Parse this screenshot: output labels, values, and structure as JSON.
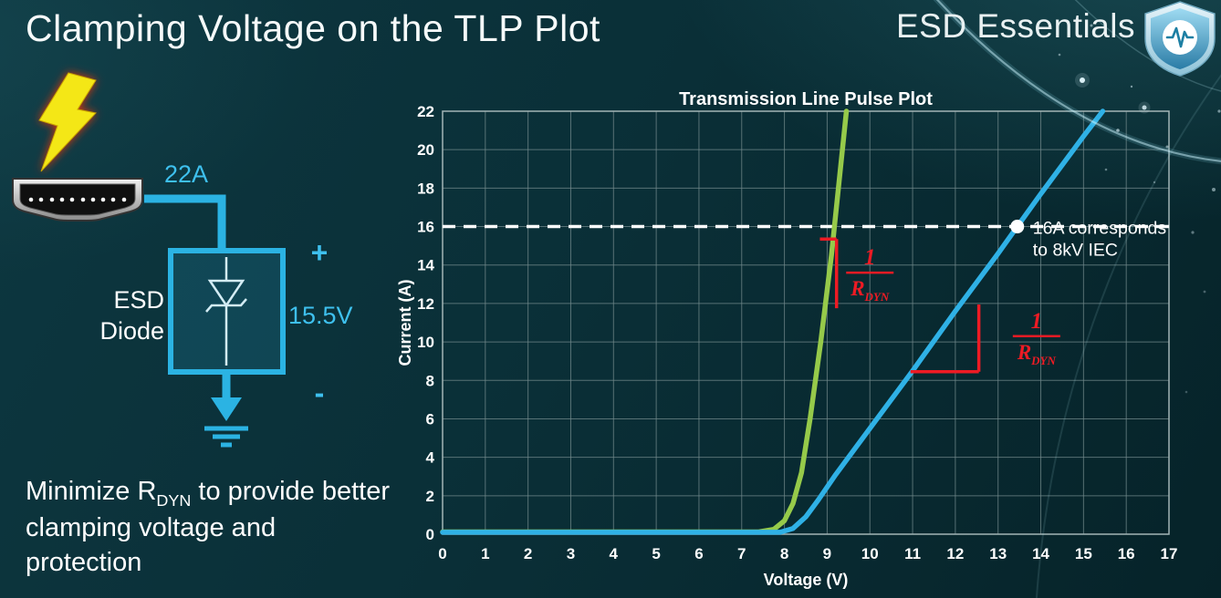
{
  "header": {
    "title": "Clamping Voltage on the TLP Plot",
    "brand": "ESD Essentials"
  },
  "esd_diagram": {
    "surge_current": "22A",
    "device_line1": "ESD",
    "device_line2": "Diode",
    "plus_sign": "+",
    "minus_sign": "-",
    "clamp_voltage": "15.5V"
  },
  "note": {
    "prefix": "Minimize R",
    "subscript": "DYN",
    "suffix": " to provide better clamping voltage and protection"
  },
  "colors": {
    "accent_cyan": "#3ec0ee",
    "curve_green": "#96ca4a",
    "curve_blue": "#2fb1e6",
    "annotation_red": "#ed1b24"
  },
  "chart_data": {
    "type": "line",
    "title": "Transmission Line Pulse Plot",
    "xlabel": "Voltage (V)",
    "ylabel": "Current (A)",
    "xlim": [
      0,
      17
    ],
    "ylim": [
      0,
      22
    ],
    "xticks": [
      0,
      1,
      2,
      3,
      4,
      5,
      6,
      7,
      8,
      9,
      10,
      11,
      12,
      13,
      14,
      15,
      16,
      17
    ],
    "yticks": [
      0,
      2,
      4,
      6,
      8,
      10,
      12,
      14,
      16,
      18,
      20,
      22
    ],
    "grid": true,
    "legend": "none",
    "series": [
      {
        "id": "green-curve",
        "color": "#96ca4a",
        "points": [
          [
            0,
            0.12
          ],
          [
            7.4,
            0.12
          ],
          [
            7.75,
            0.25
          ],
          [
            8.0,
            0.7
          ],
          [
            8.2,
            1.6
          ],
          [
            8.4,
            3.2
          ],
          [
            8.6,
            6.0
          ],
          [
            8.85,
            10.0
          ],
          [
            9.1,
            14.5
          ],
          [
            9.45,
            22
          ]
        ]
      },
      {
        "id": "blue-curve",
        "color": "#2fb1e6",
        "points": [
          [
            0,
            0.1
          ],
          [
            7.9,
            0.1
          ],
          [
            8.2,
            0.3
          ],
          [
            8.5,
            0.9
          ],
          [
            8.8,
            1.8
          ],
          [
            9.2,
            3.1
          ],
          [
            10,
            5.5
          ],
          [
            11,
            8.5
          ],
          [
            12,
            11.6
          ],
          [
            13,
            14.6
          ],
          [
            13.45,
            16
          ],
          [
            14,
            17.7
          ],
          [
            15,
            20.7
          ],
          [
            15.45,
            22
          ]
        ]
      }
    ],
    "reference_line": {
      "y": 16,
      "color": "#ffffff",
      "style": "dashed"
    },
    "marker": {
      "x": 13.45,
      "y": 16,
      "color": "#ffffff",
      "label_lines": [
        "16A corresponds",
        "to 8kV IEC"
      ]
    },
    "annotations": [
      {
        "color": "#ed1b24",
        "segments": [
          [
            8.83,
            15.35,
            9.22,
            15.35
          ],
          [
            9.22,
            15.35,
            9.22,
            11.75
          ]
        ],
        "label": {
          "numerator": "1",
          "denominator": "R",
          "denominator_sub": "DYN",
          "x": 10.0,
          "y": 13.6
        }
      },
      {
        "color": "#ed1b24",
        "segments": [
          [
            10.95,
            8.45,
            12.55,
            8.45
          ],
          [
            12.55,
            8.45,
            12.55,
            11.95
          ]
        ],
        "label": {
          "numerator": "1",
          "denominator": "R",
          "denominator_sub": "DYN",
          "x": 13.9,
          "y": 10.3
        }
      }
    ]
  }
}
